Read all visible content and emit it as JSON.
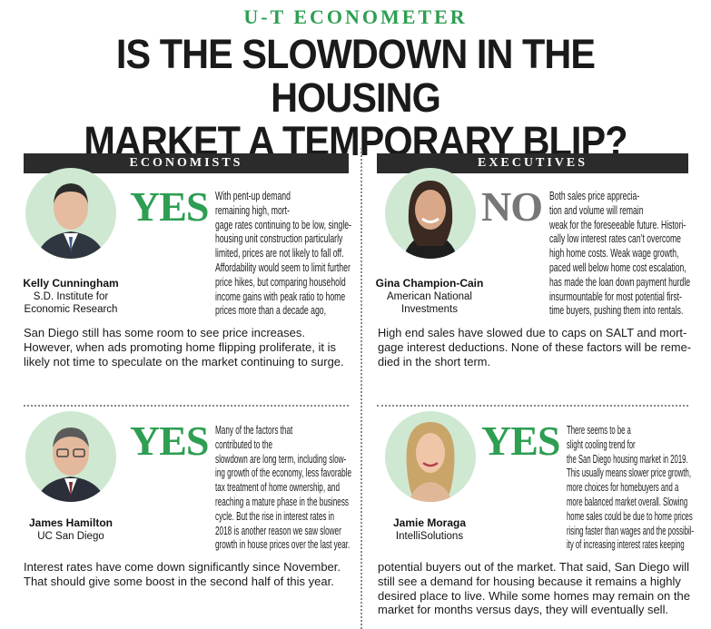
{
  "header": {
    "kicker": "U-T ECONOMETER",
    "headline_line1": "IS THE SLOWDOWN IN THE HOUSING",
    "headline_line2": "MARKET A TEMPORARY BLIP?"
  },
  "columns": {
    "left_label": "ECONOMISTS",
    "right_label": "EXECUTIVES"
  },
  "colors": {
    "yes_green": "#2e9e52",
    "no_gray": "#777777",
    "avatar_bg": "#cfe8d2",
    "bar_bg": "#2b2b2b"
  },
  "panels": [
    {
      "name": "Kelly Cunningham",
      "org": "S.D. Institute for\nEconomic Research",
      "verdict": "YES",
      "text_side": "With pent-up demand\nremaining high, mort-\ngage rates continuing to be low, single-\nhousing unit construction particularly\nlimited, prices are not likely to fall off.\nAffordability would seem to limit further\nprice hikes, but comparing household\nincome gains with peak ratio to home\nprices more than a decade ago,",
      "text_full": "San Diego still has some room to see price increases.\nHowever, when ads promoting home flipping proliferate, it is\nlikely not time to speculate on the market continuing to surge."
    },
    {
      "name": "Gina Champion-Cain",
      "org": "American National\nInvestments",
      "verdict": "NO",
      "text_side": "Both sales price apprecia-\ntion and volume will remain\nweak for the foreseeable future. Histori-\ncally low interest rates can’t overcome\nhigh home costs. Weak wage growth,\npaced well below home cost escalation,\nhas made the loan down payment hurdle\ninsurmountable for most potential first-\ntime buyers, pushing them into rentals.",
      "text_full": "High end sales have slowed due to caps on SALT and mort-\ngage interest deductions. None of these factors will be reme-\ndied in the short term."
    },
    {
      "name": "James Hamilton",
      "org": "UC San Diego",
      "verdict": "YES",
      "text_side": "Many of the factors that\ncontributed to the\nslowdown are long term, including slow-\ning growth of the economy, less favorable\ntax treatment of home ownership, and\nreaching a mature phase in the business\ncycle. But the rise in interest rates in\n2018 is another reason we saw slower\ngrowth in house prices over the last year.",
      "text_full": "Interest rates have come down significantly since November.\nThat should give some boost in the second half of this year."
    },
    {
      "name": "Jamie Moraga",
      "org": "IntelliSolutions",
      "verdict": "YES",
      "text_side": "There seems to be a\nslight cooling trend for\nthe San Diego housing market in 2019.\nThis usually means slower price growth,\nmore choices for homebuyers and a\nmore balanced market overall. Slowing\nhome sales could be due to home prices\nrising faster than wages and the possibil-\nity of increasing interest rates keeping",
      "text_full": "potential buyers out of the market. That said, San Diego will\nstill see a demand for housing because it remains a highly\ndesired place to live. While some homes may remain on the\nmarket for months versus days, they will eventually sell."
    }
  ]
}
